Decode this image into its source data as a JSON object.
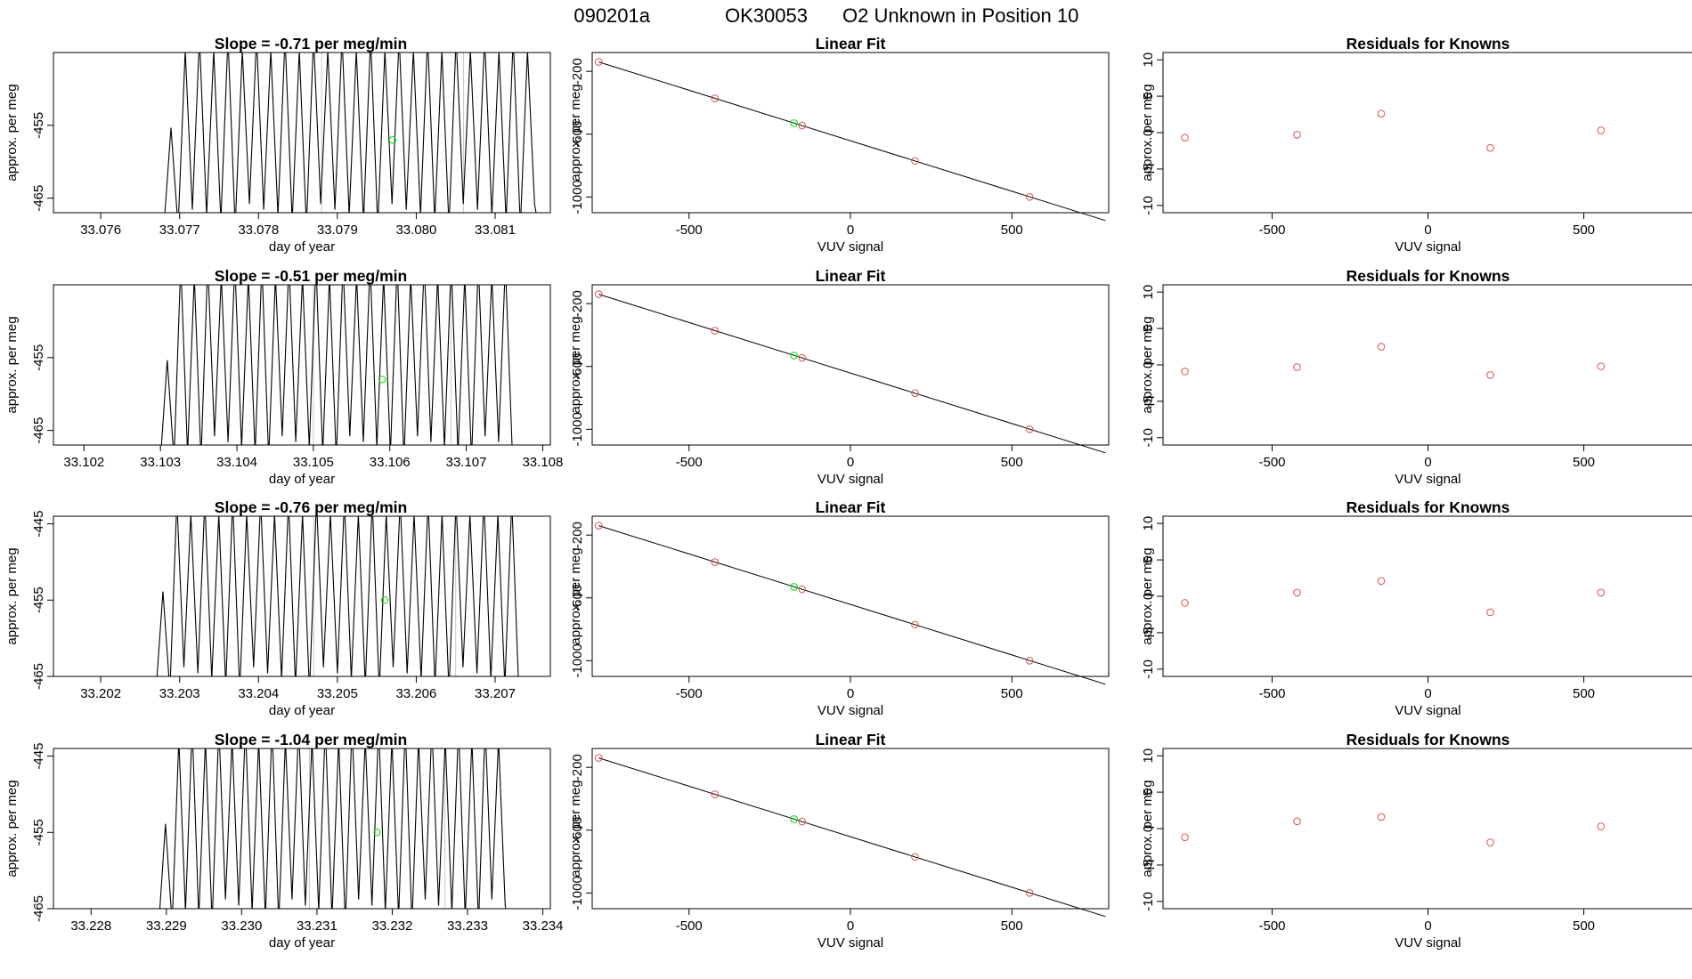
{
  "header": {
    "title_id": "090201a",
    "title_tank": "OK30053",
    "title_desc": "O2 Unknown in Position  10"
  },
  "colors": {
    "known": "#d9534f",
    "unknown": "#00e000",
    "line": "#000000"
  },
  "chart_data": [
    {
      "row": 1,
      "trace": {
        "type": "line",
        "title": "Slope =  -0.71  per meg/min",
        "xlabel": "day of year",
        "ylabel": "approx. per meg",
        "xlim": [
          33.0754,
          33.0817
        ],
        "ylim": [
          -467,
          -445
        ],
        "xticks": [
          "33.076",
          "33.077",
          "33.078",
          "33.079",
          "33.080",
          "33.081"
        ],
        "yticks": [
          "-455",
          "-465"
        ],
        "data_start": 33.0768,
        "data_end": 33.0815,
        "cycles": 26,
        "vlines": [
          33.0788,
          33.0806
        ],
        "marker": [
          33.0797,
          -457
        ]
      },
      "fit": {
        "type": "scatter",
        "title": "Linear Fit",
        "xlabel": "VUV signal",
        "ylabel": "approx. per meg",
        "xlim": [
          -800,
          800
        ],
        "ylim": [
          -1100,
          -80
        ],
        "xticks": [
          "-500",
          "0",
          "500"
        ],
        "yticks": [
          "-200",
          "-600",
          "-1000"
        ],
        "knowns": [
          [
            -780,
            -140
          ],
          [
            -420,
            -372
          ],
          [
            -150,
            -545
          ],
          [
            200,
            -770
          ],
          [
            555,
            -1000
          ]
        ],
        "unknown": [
          -175,
          -530
        ],
        "line": [
          [
            -780,
            -140
          ],
          [
            790,
            -1150
          ]
        ]
      },
      "residuals": {
        "type": "scatter",
        "title": "Residuals for Knowns",
        "xlabel": "VUV signal",
        "ylabel": "approx. per meg",
        "xlim": [
          -850,
          850
        ],
        "ylim": [
          -11,
          11
        ],
        "xticks": [
          "-500",
          "0",
          "500"
        ],
        "yticks": [
          "10",
          "5",
          "0",
          "-5",
          "-10"
        ],
        "points": [
          [
            -780,
            -0.7
          ],
          [
            -420,
            -0.3
          ],
          [
            -150,
            2.6
          ],
          [
            200,
            -2.1
          ],
          [
            555,
            0.3
          ]
        ]
      }
    },
    {
      "row": 2,
      "trace": {
        "type": "line",
        "title": "Slope =  -0.51  per meg/min",
        "xlabel": "day of year",
        "ylabel": "approx. per meg",
        "xlim": [
          33.1016,
          33.1081
        ],
        "ylim": [
          -467,
          -445
        ],
        "xticks": [
          "33.102",
          "33.103",
          "33.104",
          "33.105",
          "33.106",
          "33.107",
          "33.108"
        ],
        "yticks": [
          "-455",
          "-465"
        ],
        "data_start": 33.103,
        "data_end": 33.1076,
        "cycles": 26,
        "vlines": [
          33.105,
          33.1068
        ],
        "marker": [
          33.1059,
          -458
        ]
      },
      "fit": {
        "type": "scatter",
        "title": "Linear Fit",
        "xlabel": "VUV signal",
        "ylabel": "approx. per meg",
        "xlim": [
          -800,
          800
        ],
        "ylim": [
          -1100,
          -80
        ],
        "xticks": [
          "-500",
          "0",
          "500"
        ],
        "yticks": [
          "-200",
          "-600",
          "-1000"
        ],
        "knowns": [
          [
            -780,
            -140
          ],
          [
            -420,
            -372
          ],
          [
            -150,
            -545
          ],
          [
            200,
            -770
          ],
          [
            555,
            -1000
          ]
        ],
        "unknown": [
          -175,
          -530
        ],
        "line": [
          [
            -780,
            -140
          ],
          [
            790,
            -1150
          ]
        ]
      },
      "residuals": {
        "type": "scatter",
        "title": "Residuals for Knowns",
        "xlabel": "VUV signal",
        "ylabel": "approx. per meg",
        "xlim": [
          -850,
          850
        ],
        "ylim": [
          -11,
          11
        ],
        "xticks": [
          "-500",
          "0",
          "500"
        ],
        "yticks": [
          "10",
          "5",
          "0",
          "-5",
          "-10"
        ],
        "points": [
          [
            -780,
            -0.9
          ],
          [
            -420,
            -0.3
          ],
          [
            -150,
            2.5
          ],
          [
            200,
            -1.4
          ],
          [
            555,
            -0.2
          ]
        ]
      }
    },
    {
      "row": 3,
      "trace": {
        "type": "line",
        "title": "Slope =  -0.76  per meg/min",
        "xlabel": "day of year",
        "ylabel": "approx. per meg",
        "xlim": [
          33.2014,
          33.2077
        ],
        "ylim": [
          -465,
          -444
        ],
        "xticks": [
          "33.202",
          "33.203",
          "33.204",
          "33.205",
          "33.206",
          "33.207"
        ],
        "yticks": [
          "-445",
          "-455",
          "-465"
        ],
        "data_start": 33.2027,
        "data_end": 33.2073,
        "cycles": 26,
        "vlines": [
          33.2047,
          33.2065
        ],
        "marker": [
          33.2056,
          -455
        ]
      },
      "fit": {
        "type": "scatter",
        "title": "Linear Fit",
        "xlabel": "VUV signal",
        "ylabel": "approx. per meg",
        "xlim": [
          -800,
          800
        ],
        "ylim": [
          -1100,
          -80
        ],
        "xticks": [
          "-500",
          "0",
          "500"
        ],
        "yticks": [
          "-200",
          "-600",
          "-1000"
        ],
        "knowns": [
          [
            -780,
            -140
          ],
          [
            -420,
            -372
          ],
          [
            -150,
            -545
          ],
          [
            200,
            -770
          ],
          [
            555,
            -1000
          ]
        ],
        "unknown": [
          -175,
          -530
        ],
        "line": [
          [
            -780,
            -140
          ],
          [
            790,
            -1150
          ]
        ]
      },
      "residuals": {
        "type": "scatter",
        "title": "Residuals for Knowns",
        "xlabel": "VUV signal",
        "ylabel": "approx. per meg",
        "xlim": [
          -850,
          850
        ],
        "ylim": [
          -11,
          11
        ],
        "xticks": [
          "-500",
          "0",
          "500"
        ],
        "yticks": [
          "10",
          "5",
          "0",
          "-5",
          "-10"
        ],
        "points": [
          [
            -780,
            -0.9
          ],
          [
            -420,
            0.5
          ],
          [
            -150,
            2.1
          ],
          [
            200,
            -2.2
          ],
          [
            555,
            0.5
          ]
        ]
      }
    },
    {
      "row": 4,
      "trace": {
        "type": "line",
        "title": "Slope =  -1.04  per meg/min",
        "xlabel": "day of year",
        "ylabel": "approx. per meg",
        "xlim": [
          33.2275,
          33.2341
        ],
        "ylim": [
          -465,
          -444
        ],
        "xticks": [
          "33.228",
          "33.229",
          "33.230",
          "33.231",
          "33.232",
          "33.233",
          "33.234"
        ],
        "yticks": [
          "-445",
          "-455",
          "-465"
        ],
        "data_start": 33.2289,
        "data_end": 33.2335,
        "cycles": 26,
        "vlines": [
          33.2309,
          33.2327
        ],
        "marker": [
          33.2318,
          -455
        ]
      },
      "fit": {
        "type": "scatter",
        "title": "Linear Fit",
        "xlabel": "VUV signal",
        "ylabel": "approx. per meg",
        "xlim": [
          -800,
          800
        ],
        "ylim": [
          -1100,
          -80
        ],
        "xticks": [
          "-500",
          "0",
          "500"
        ],
        "yticks": [
          "-200",
          "-600",
          "-1000"
        ],
        "knowns": [
          [
            -780,
            -140
          ],
          [
            -420,
            -372
          ],
          [
            -150,
            -545
          ],
          [
            200,
            -770
          ],
          [
            555,
            -1000
          ]
        ],
        "unknown": [
          -175,
          -530
        ],
        "line": [
          [
            -780,
            -140
          ],
          [
            790,
            -1150
          ]
        ]
      },
      "residuals": {
        "type": "scatter",
        "title": "Residuals for Knowns",
        "xlabel": "VUV signal",
        "ylabel": "approx. per meg",
        "xlim": [
          -850,
          850
        ],
        "ylim": [
          -11,
          11
        ],
        "xticks": [
          "-500",
          "0",
          "500"
        ],
        "yticks": [
          "10",
          "5",
          "0",
          "-5",
          "-10"
        ],
        "points": [
          [
            -780,
            -1.2
          ],
          [
            -420,
            1.0
          ],
          [
            -150,
            1.6
          ],
          [
            200,
            -1.9
          ],
          [
            555,
            0.3
          ]
        ]
      }
    }
  ]
}
